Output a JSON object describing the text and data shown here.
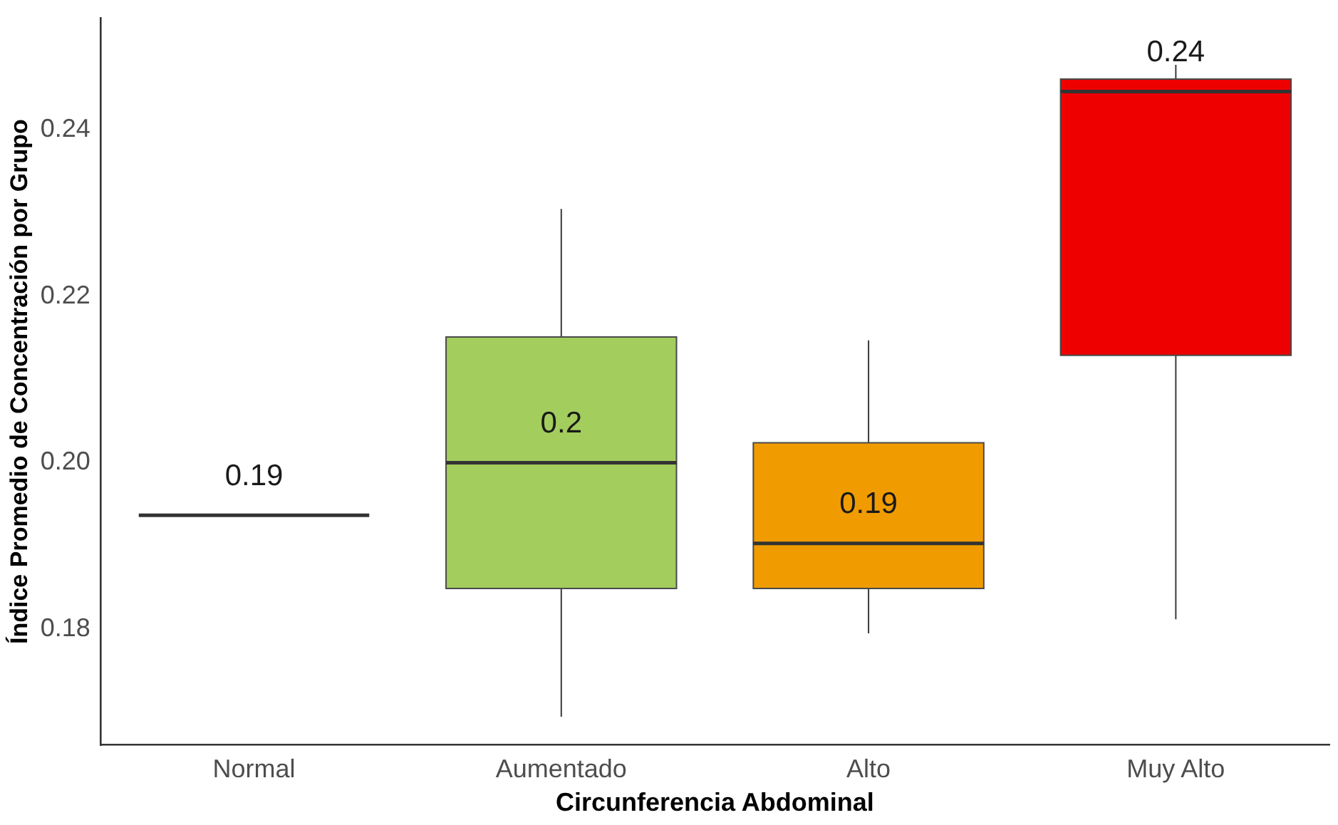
{
  "chart_data": {
    "type": "box",
    "xlabel": "Circunferencia Abdominal",
    "ylabel": "Índice Promedio de Concentración por Grupo",
    "categories": [
      "Normal",
      "Aumentado",
      "Alto",
      "Muy Alto"
    ],
    "boxes": [
      {
        "low": 0.1937,
        "q1": 0.1937,
        "median": 0.1937,
        "q3": 0.1937,
        "high": 0.1937
      },
      {
        "low": 0.1695,
        "q1": 0.1849,
        "median": 0.2,
        "q3": 0.2151,
        "high": 0.2305
      },
      {
        "low": 0.1795,
        "q1": 0.1849,
        "median": 0.1903,
        "q3": 0.2024,
        "high": 0.2147
      },
      {
        "low": 0.1812,
        "q1": 0.2129,
        "median": 0.2446,
        "q3": 0.2461,
        "high": 0.2478
      }
    ],
    "colors": [
      "#333333",
      "#a3cd5d",
      "#f09c00",
      "#ee0000"
    ],
    "ylim": [
      0.1661,
      0.2534
    ],
    "yticks": [
      {
        "value": 0.18,
        "label": "0.18"
      },
      {
        "value": 0.2,
        "label": "0.20"
      },
      {
        "value": 0.22,
        "label": "0.22"
      },
      {
        "value": 0.24,
        "label": "0.24"
      }
    ],
    "grid": false,
    "legend": false,
    "annotations": [
      "0.19",
      "0.2",
      "0.19",
      "0.24"
    ]
  }
}
